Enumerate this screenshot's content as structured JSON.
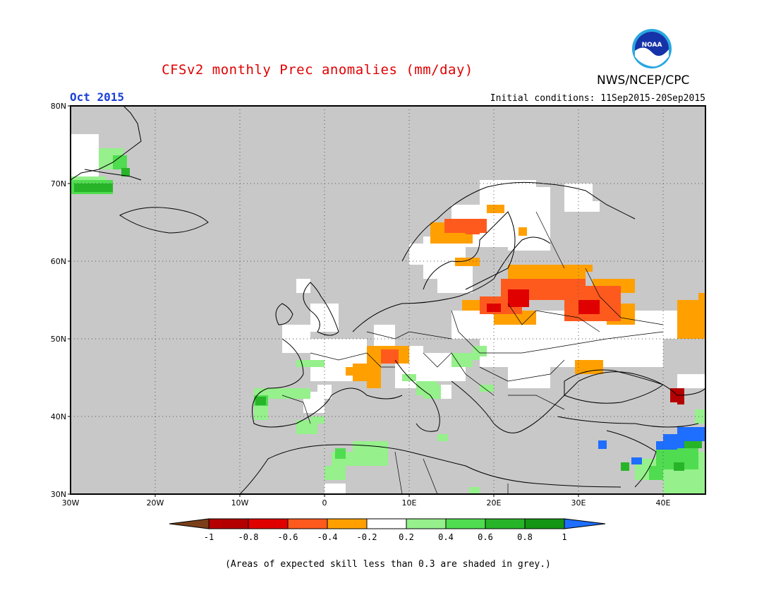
{
  "header": {
    "title": "CFSv2 monthly Prec anomalies (mm/day)",
    "agency": "NWS/NCEP/CPC",
    "logo_text": "NOAA",
    "month": "Oct 2015",
    "initial_conditions": "Initial conditions: 11Sep2015-20Sep2015"
  },
  "footnote": "(Areas of expected skill less than 0.3 are shaded in grey.)",
  "map": {
    "lon_range": [
      -30,
      45
    ],
    "lat_range": [
      30,
      80
    ],
    "lon_ticks": [
      "30W",
      "20W",
      "10W",
      "0",
      "10E",
      "20E",
      "30E",
      "40E"
    ],
    "lat_ticks": [
      "30N",
      "40N",
      "50N",
      "60N",
      "70N",
      "80N"
    ],
    "background_color": "#c8c8c8",
    "grid": "dotted"
  },
  "colorbar": {
    "labels": [
      "-1",
      "-0.8",
      "-0.6",
      "-0.4",
      "-0.2",
      "0.2",
      "0.4",
      "0.6",
      "0.8",
      "1"
    ],
    "colors": [
      "#7a3f1a",
      "#b40000",
      "#e00000",
      "#ff5a1e",
      "#ffa000",
      "#ffffff",
      "#96f08c",
      "#50dc50",
      "#28b428",
      "#149614",
      "#1e6eff"
    ]
  },
  "colors": {
    "title": "#e00000",
    "month": "#1a3fd6",
    "skill_mask": "#c8c8c8"
  }
}
